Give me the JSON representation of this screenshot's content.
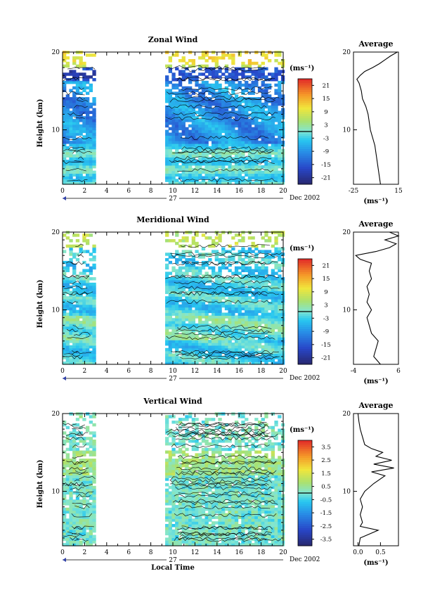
{
  "chart_data": [
    {
      "type": "heatmap",
      "title": "Zonal Wind",
      "ylabel": "Height (km)",
      "xlim": [
        0,
        20
      ],
      "ylim": [
        3,
        20
      ],
      "xticks": [
        "0",
        "2",
        "4",
        "6",
        "8",
        "10",
        "12",
        "14",
        "16",
        "18",
        "20"
      ],
      "yticks": [
        {
          "v": 10,
          "t": "10"
        },
        {
          "v": 20,
          "t": "20"
        }
      ],
      "date_marker": "27",
      "date_label": "Dec 2002",
      "colorbar": {
        "units": "(ms⁻¹)",
        "min": -24,
        "max": 24,
        "ticks": [
          "21",
          "15",
          "9",
          "3",
          "-3",
          "-9",
          "-15",
          "-21"
        ]
      },
      "data_gaps_hours": [
        [
          3,
          9.2
        ]
      ],
      "average_profile": {
        "title": "Average",
        "xlabel": "(ms⁻¹)",
        "xlim": [
          -25,
          15
        ],
        "xticks": [
          "-25",
          "15"
        ],
        "yticks": [
          "10",
          "20"
        ],
        "height_km": [
          3,
          4,
          5,
          6,
          7,
          8,
          9,
          10,
          11,
          12,
          13,
          14,
          15,
          16,
          16.5,
          17,
          17.5,
          18,
          18.5,
          19,
          19.5,
          20
        ],
        "value": [
          -1,
          -2,
          -3,
          -4,
          -5,
          -6,
          -8,
          -10,
          -11,
          -12,
          -14,
          -17,
          -18,
          -20,
          -22,
          -19,
          -15,
          -8,
          -2,
          3,
          8,
          14
        ]
      }
    },
    {
      "type": "heatmap",
      "title": "Meridional Wind",
      "ylabel": "Height (km)",
      "xlim": [
        0,
        20
      ],
      "ylim": [
        3,
        20
      ],
      "xticks": [
        "0",
        "2",
        "4",
        "6",
        "8",
        "10",
        "12",
        "14",
        "16",
        "18",
        "20"
      ],
      "yticks": [
        {
          "v": 10,
          "t": "10"
        },
        {
          "v": 20,
          "t": "20"
        }
      ],
      "date_marker": "27",
      "date_label": "Dec 2002",
      "colorbar": {
        "units": "(ms⁻¹)",
        "min": -24,
        "max": 24,
        "ticks": [
          "21",
          "15",
          "9",
          "3",
          "-3",
          "-9",
          "-15",
          "-21"
        ]
      },
      "data_gaps_hours": [
        [
          3,
          9.2
        ]
      ],
      "average_profile": {
        "title": "Average",
        "xlabel": "(ms⁻¹)",
        "xlim": [
          -4,
          6
        ],
        "xticks": [
          "-4",
          "6"
        ],
        "yticks": [
          "10",
          "20"
        ],
        "height_km": [
          3,
          4,
          5,
          6,
          7,
          8,
          9,
          10,
          11,
          12,
          13,
          14,
          15,
          16,
          16.5,
          17,
          17.5,
          18,
          18.5,
          19,
          19.5,
          20
        ],
        "value": [
          2,
          0.5,
          1,
          1.5,
          0,
          -0.5,
          -1,
          0,
          -1,
          -0.5,
          -1,
          0,
          -0.5,
          0,
          -2.5,
          -3.5,
          1,
          4,
          5.5,
          3,
          6,
          4
        ]
      }
    },
    {
      "type": "heatmap",
      "title": "Vertical Wind",
      "ylabel": "Height (km)",
      "xlabel": "Local Time",
      "xlim": [
        0,
        20
      ],
      "ylim": [
        3,
        20
      ],
      "xticks": [
        "0",
        "2",
        "4",
        "6",
        "8",
        "10",
        "12",
        "14",
        "16",
        "18",
        "20"
      ],
      "yticks": [
        {
          "v": 10,
          "t": "10"
        },
        {
          "v": 20,
          "t": "20"
        }
      ],
      "date_marker": "27",
      "date_label": "Dec 2002",
      "colorbar": {
        "units": "(ms⁻¹)",
        "min": -4,
        "max": 4,
        "ticks": [
          "3.5",
          "2.5",
          "1.5",
          "0.5",
          "-0.5",
          "-1.5",
          "-2.5",
          "-3.5"
        ]
      },
      "data_gaps_hours": [
        [
          3,
          9.2
        ]
      ],
      "average_profile": {
        "title": "Average",
        "xlabel": "(ms⁻¹)",
        "xlim": [
          -0.1,
          0.9
        ],
        "xticks": [
          "0.0",
          "0.5"
        ],
        "yticks": [
          "10",
          "20"
        ],
        "height_km": [
          3,
          4,
          5,
          5.5,
          6,
          7,
          8,
          9,
          10,
          11,
          12,
          12.5,
          13,
          13.5,
          14,
          14.5,
          15,
          15.5,
          16,
          17,
          18,
          19,
          20
        ],
        "value": [
          0.02,
          0.05,
          0.45,
          0.05,
          0.1,
          0.05,
          0.1,
          0.05,
          0.15,
          0.35,
          0.6,
          0.3,
          0.8,
          0.35,
          0.75,
          0.4,
          0.55,
          0.3,
          0.15,
          0.1,
          0.05,
          0.02,
          0.0
        ]
      }
    }
  ]
}
